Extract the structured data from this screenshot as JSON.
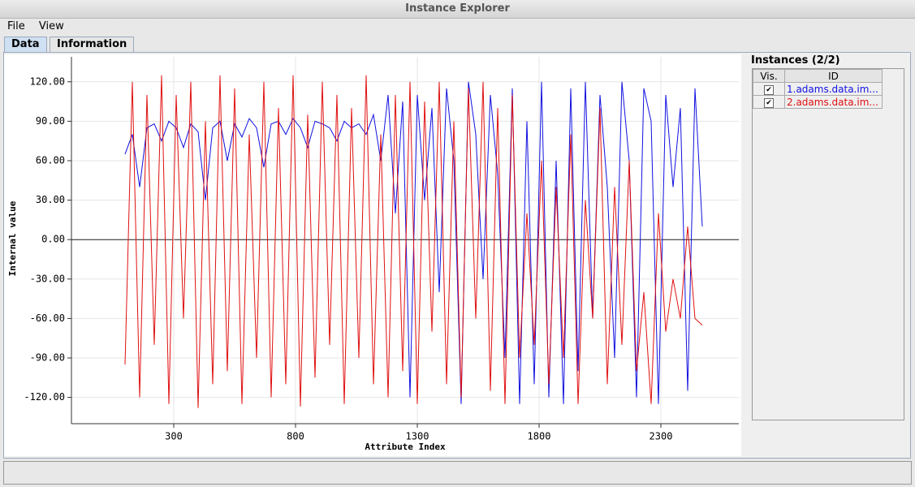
{
  "window": {
    "title": "Instance Explorer",
    "menu": [
      "File",
      "View"
    ],
    "tabs": [
      "Data",
      "Information"
    ],
    "panel_title": "Instances (2/2)",
    "table_headers": [
      "Vis.",
      "ID"
    ]
  },
  "chart_data": {
    "type": "line",
    "x_label": "Attribute Index",
    "y_label": "Internal value",
    "x": [
      100,
      130,
      160,
      190,
      220,
      250,
      280,
      310,
      340,
      370,
      400,
      430,
      460,
      490,
      520,
      550,
      580,
      610,
      640,
      670,
      700,
      730,
      760,
      790,
      820,
      850,
      880,
      910,
      940,
      970,
      1000,
      1030,
      1060,
      1090,
      1120,
      1150,
      1180,
      1210,
      1240,
      1270,
      1300,
      1330,
      1360,
      1390,
      1420,
      1450,
      1480,
      1510,
      1540,
      1570,
      1600,
      1630,
      1660,
      1690,
      1720,
      1750,
      1780,
      1810,
      1840,
      1870,
      1900,
      1930,
      1960,
      1990,
      2020,
      2050,
      2080,
      2110,
      2140,
      2170,
      2200,
      2230,
      2260,
      2290,
      2320,
      2350,
      2380,
      2410,
      2440,
      2470
    ],
    "series": [
      {
        "name": "1.adams.data.im...",
        "color": "#1010e0",
        "values": [
          65,
          80,
          40,
          85,
          88,
          75,
          90,
          85,
          70,
          88,
          82,
          30,
          85,
          90,
          60,
          88,
          78,
          92,
          85,
          55,
          88,
          90,
          80,
          92,
          85,
          70,
          90,
          88,
          85,
          75,
          90,
          85,
          88,
          80,
          95,
          60,
          110,
          20,
          105,
          -120,
          110,
          30,
          100,
          -40,
          115,
          60,
          -125,
          120,
          80,
          -30,
          110,
          50,
          -90,
          115,
          -125,
          90,
          -110,
          120,
          -120,
          60,
          -125,
          115,
          -100,
          120,
          -60,
          110,
          40,
          -90,
          120,
          60,
          -120,
          115,
          90,
          -125,
          110,
          40,
          100,
          -115,
          115,
          10
        ]
      },
      {
        "name": "2.adams.data.im...",
        "color": "#e01010",
        "values": [
          -95,
          120,
          -120,
          110,
          -80,
          125,
          -125,
          110,
          -60,
          120,
          -128,
          90,
          -110,
          125,
          -100,
          115,
          -125,
          80,
          -90,
          120,
          -120,
          100,
          -110,
          125,
          -127,
          95,
          -105,
          120,
          -80,
          110,
          -125,
          100,
          -90,
          125,
          -110,
          80,
          -120,
          110,
          -100,
          120,
          -125,
          105,
          -70,
          120,
          -110,
          90,
          -120,
          115,
          -60,
          120,
          -115,
          100,
          -125,
          110,
          -90,
          20,
          -80,
          60,
          -110,
          40,
          -90,
          80,
          -125,
          30,
          -60,
          100,
          -110,
          40,
          -80,
          60,
          -100,
          -40,
          -125,
          20,
          -70,
          -30,
          -60,
          10,
          -60,
          -65
        ]
      }
    ],
    "xlim": [
      -120,
      2620
    ],
    "ylim": [
      -140,
      139
    ],
    "xticks": [
      300,
      800,
      1300,
      1800,
      2300
    ],
    "yticks": [
      {
        "value": -120,
        "label": "-120.00"
      },
      {
        "value": -90,
        "label": "-90.00"
      },
      {
        "value": -60,
        "label": "-60.00"
      },
      {
        "value": -30,
        "label": "-30.00"
      },
      {
        "value": 0,
        "label": "0.00"
      },
      {
        "value": 30,
        "label": "30.00"
      },
      {
        "value": 60,
        "label": "60.00"
      },
      {
        "value": 90,
        "label": "90.00"
      },
      {
        "value": 120,
        "label": "120.00"
      }
    ],
    "grid": true
  }
}
